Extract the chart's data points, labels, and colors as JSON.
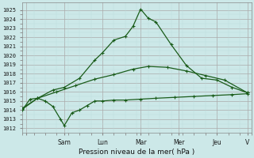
{
  "xlabel": "Pression niveau de la mer( hPa )",
  "bg_color": "#cce8e8",
  "grid_color": "#aacccc",
  "line_color": "#1a5c1a",
  "ylim": [
    1011.5,
    1025.8
  ],
  "yticks": [
    1012,
    1013,
    1014,
    1015,
    1016,
    1017,
    1018,
    1019,
    1020,
    1021,
    1022,
    1023,
    1024,
    1025
  ],
  "xtick_positions": [
    2,
    22,
    42,
    62,
    82,
    102,
    118
  ],
  "xtick_display": [
    "",
    "Sam",
    "Lun",
    "Mar",
    "Mer",
    "Jeu",
    "V"
  ],
  "line1_x": [
    0,
    4,
    8,
    12,
    16,
    20,
    22,
    26,
    30,
    34,
    38,
    42,
    48,
    54,
    62,
    70,
    80,
    90,
    100,
    110,
    118
  ],
  "line1_y": [
    1014.0,
    1015.2,
    1015.3,
    1015.0,
    1014.4,
    1013.0,
    1012.3,
    1013.7,
    1014.0,
    1014.5,
    1015.0,
    1015.0,
    1015.1,
    1015.1,
    1015.2,
    1015.3,
    1015.4,
    1015.5,
    1015.6,
    1015.7,
    1015.8
  ],
  "line2_x": [
    0,
    8,
    16,
    22,
    30,
    38,
    42,
    48,
    54,
    58,
    62,
    66,
    70,
    78,
    86,
    94,
    102,
    110,
    118
  ],
  "line2_y": [
    1014.1,
    1015.3,
    1016.2,
    1016.5,
    1017.5,
    1019.5,
    1020.3,
    1021.7,
    1022.1,
    1023.2,
    1025.1,
    1024.1,
    1023.7,
    1021.2,
    1018.9,
    1017.5,
    1017.3,
    1016.5,
    1015.9
  ],
  "line3_x": [
    0,
    8,
    18,
    28,
    38,
    48,
    58,
    66,
    76,
    86,
    96,
    106,
    118
  ],
  "line3_y": [
    1014.2,
    1015.3,
    1016.0,
    1016.7,
    1017.4,
    1017.9,
    1018.5,
    1018.8,
    1018.7,
    1018.3,
    1017.8,
    1017.3,
    1015.9
  ]
}
